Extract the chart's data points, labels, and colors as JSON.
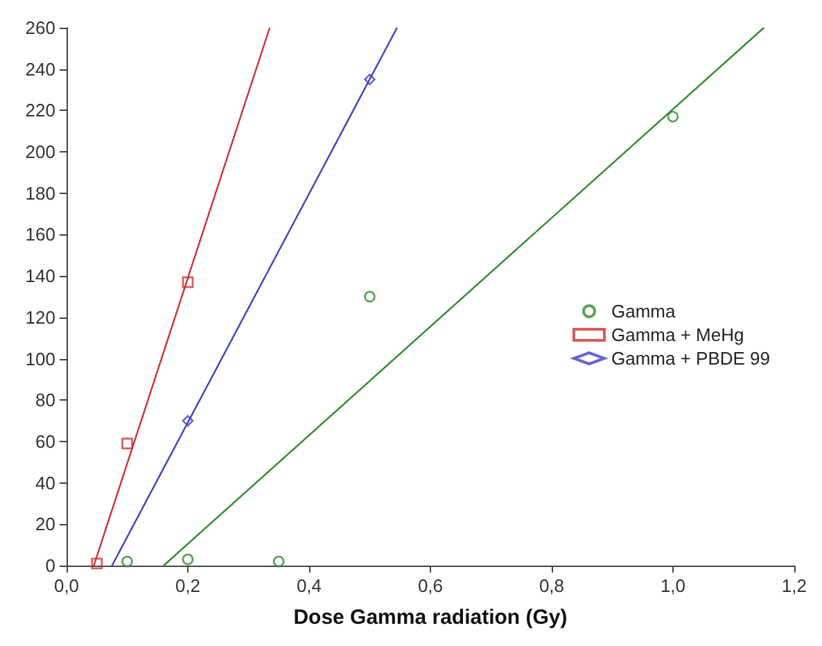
{
  "chart_data": {
    "type": "scatter",
    "xlabel": "Dose Gamma radiation (Gy)",
    "xlim": [
      0,
      1.2
    ],
    "xticks": [
      {
        "value": 0,
        "label": "0,0"
      },
      {
        "value": 0.2,
        "label": "0,2"
      },
      {
        "value": 0.4,
        "label": "0,4"
      },
      {
        "value": 0.6,
        "label": "0,6"
      },
      {
        "value": 0.8,
        "label": "0,8"
      },
      {
        "value": 1.0,
        "label": "1,0"
      },
      {
        "value": 1.2,
        "label": "1,2"
      }
    ],
    "ylim": [
      0,
      260
    ],
    "yticks": [
      0,
      20,
      40,
      60,
      80,
      100,
      120,
      140,
      160,
      180,
      200,
      220,
      240,
      260
    ],
    "grid": false,
    "legend": "right",
    "series": [
      {
        "name": "Gamma",
        "marker": "circle",
        "color": "#2e8b2e",
        "x": [
          0.1,
          0.2,
          0.35,
          0.5,
          1.0
        ],
        "values": [
          2,
          3,
          2,
          130,
          217
        ]
      },
      {
        "name": "Gamma + MeHg",
        "marker": "square",
        "color": "#d03030",
        "x": [
          0.05,
          0.1,
          0.2
        ],
        "values": [
          1,
          59,
          137
        ]
      },
      {
        "name": "Gamma + PBDE 99",
        "marker": "diamond",
        "color": "#4040c0",
        "x": [
          0.2,
          0.5
        ],
        "values": [
          70,
          235
        ]
      },
      {
        "type": "line",
        "marker": "none",
        "color": "#2e8b2e",
        "x": [
          0.16,
          1.15
        ],
        "values": [
          0,
          260
        ]
      },
      {
        "type": "line",
        "marker": "none",
        "color": "#d03030",
        "x": [
          0.045,
          0.335
        ],
        "values": [
          0,
          260
        ]
      },
      {
        "type": "line",
        "marker": "none",
        "color": "#4040c0",
        "x": [
          0.075,
          0.545
        ],
        "values": [
          0,
          260
        ]
      }
    ]
  }
}
